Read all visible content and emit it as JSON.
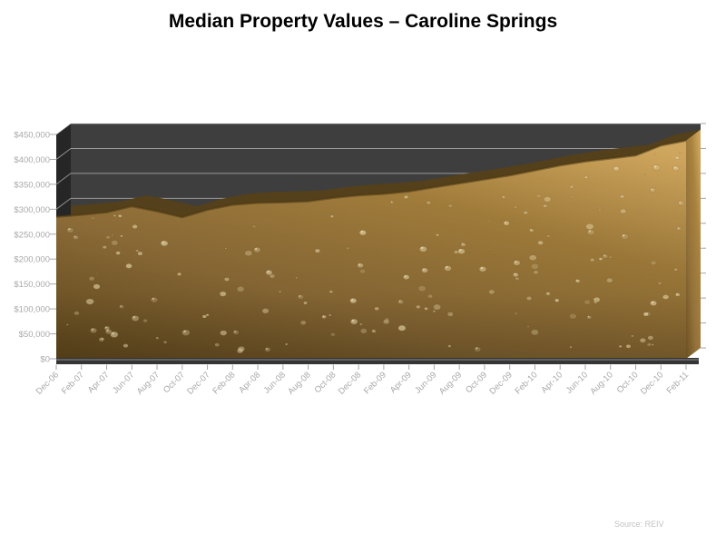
{
  "page": {
    "title": "Median Property Values – Caroline Springs",
    "source_note": "Source: REIV"
  },
  "chart_data": {
    "type": "area",
    "subtype": "3d-area",
    "title": "Median Property Values – Caroline Springs",
    "xlabel": "",
    "ylabel": "",
    "categories": [
      "Dec-06",
      "Feb-07",
      "Apr-07",
      "Jun-07",
      "Aug-07",
      "Oct-07",
      "Dec-07",
      "Feb-08",
      "Apr-08",
      "Jun-08",
      "Aug-08",
      "Oct-08",
      "Dec-08",
      "Feb-09",
      "Apr-09",
      "Jun-09",
      "Aug-09",
      "Oct-09",
      "Dec-09",
      "Feb-10",
      "Apr-10",
      "Jun-10",
      "Aug-10",
      "Oct-10",
      "Dec-10",
      "Feb-11"
    ],
    "series": [
      {
        "name": "Median Property Value",
        "values": [
          285000,
          289000,
          294000,
          306000,
          296000,
          284000,
          299000,
          309000,
          313000,
          314000,
          316000,
          323000,
          328000,
          331000,
          336000,
          344000,
          352000,
          360000,
          368000,
          378000,
          388000,
          396000,
          402000,
          408000,
          428000,
          438000
        ]
      }
    ],
    "ylim": [
      0,
      450000
    ],
    "ytick_interval": 50000,
    "ytick_labels": [
      "$0",
      "$50,000",
      "$100,000",
      "$150,000",
      "$200,000",
      "$250,000",
      "$300,000",
      "$350,000",
      "$400,000",
      "$450,000"
    ],
    "grid": true,
    "legend": false,
    "annotation": "Source: REIV",
    "colors": {
      "back_wall": "#3e3e3e",
      "side_wall": "#262626",
      "gridline": "#e6e6e6",
      "axis_label": "#a9a9a9",
      "area_gold_dark": "#6b5122",
      "area_gold_mid": "#a8823e",
      "area_gold_light": "#d0a75e",
      "area_ribbon_top": "#54401a",
      "title_color": "#000000",
      "source_color": "#c2c2c2"
    },
    "texture": "gold-metallic-with-water-droplets"
  }
}
